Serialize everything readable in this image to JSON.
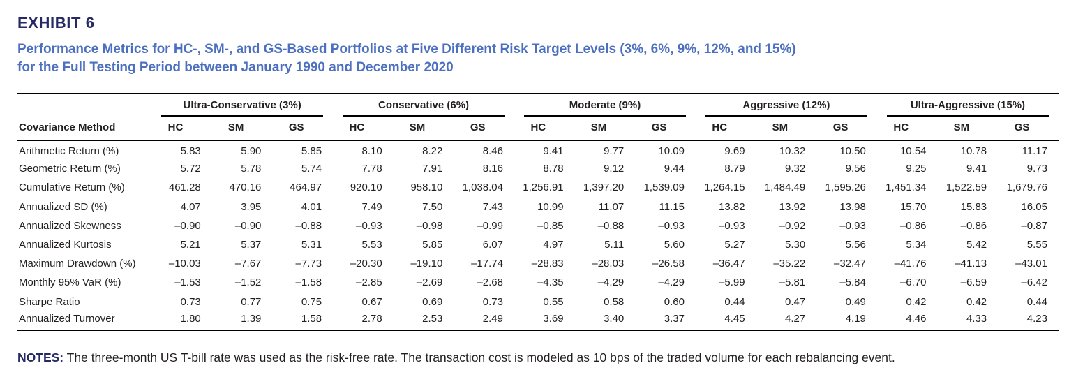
{
  "exhibit": {
    "label": "EXHIBIT 6",
    "title_line1": "Performance Metrics for HC-, SM-, and GS-Based Portfolios at Five Different Risk Target Levels (3%, 6%, 9%, 12%, and 15%)",
    "title_line2": "for the Full Testing Period between January 1990 and December 2020"
  },
  "table": {
    "row_header_label": "Covariance Method",
    "groups": [
      {
        "label": "Ultra-Conservative (3%)",
        "columns": [
          "HC",
          "SM",
          "GS"
        ]
      },
      {
        "label": "Conservative (6%)",
        "columns": [
          "HC",
          "SM",
          "GS"
        ]
      },
      {
        "label": "Moderate (9%)",
        "columns": [
          "HC",
          "SM",
          "GS"
        ]
      },
      {
        "label": "Aggressive (12%)",
        "columns": [
          "HC",
          "SM",
          "GS"
        ]
      },
      {
        "label": "Ultra-Aggressive (15%)",
        "columns": [
          "HC",
          "SM",
          "GS"
        ]
      }
    ],
    "rows": [
      {
        "label": "Arithmetic Return (%)",
        "values": [
          "5.83",
          "5.90",
          "5.85",
          "8.10",
          "8.22",
          "8.46",
          "9.41",
          "9.77",
          "10.09",
          "9.69",
          "10.32",
          "10.50",
          "10.54",
          "10.78",
          "11.17"
        ]
      },
      {
        "label": "Geometric Return (%)",
        "values": [
          "5.72",
          "5.78",
          "5.74",
          "7.78",
          "7.91",
          "8.16",
          "8.78",
          "9.12",
          "9.44",
          "8.79",
          "9.32",
          "9.56",
          "9.25",
          "9.41",
          "9.73"
        ]
      },
      {
        "label": "Cumulative Return (%)",
        "values": [
          "461.28",
          "470.16",
          "464.97",
          "920.10",
          "958.10",
          "1,038.04",
          "1,256.91",
          "1,397.20",
          "1,539.09",
          "1,264.15",
          "1,484.49",
          "1,595.26",
          "1,451.34",
          "1,522.59",
          "1,679.76"
        ]
      },
      {
        "label": "Annualized SD (%)",
        "values": [
          "4.07",
          "3.95",
          "4.01",
          "7.49",
          "7.50",
          "7.43",
          "10.99",
          "11.07",
          "11.15",
          "13.82",
          "13.92",
          "13.98",
          "15.70",
          "15.83",
          "16.05"
        ]
      },
      {
        "label": "Annualized Skewness",
        "values": [
          "–0.90",
          "–0.90",
          "–0.88",
          "–0.93",
          "–0.98",
          "–0.99",
          "–0.85",
          "–0.88",
          "–0.93",
          "–0.93",
          "–0.92",
          "–0.93",
          "–0.86",
          "–0.86",
          "–0.87"
        ]
      },
      {
        "label": "Annualized Kurtosis",
        "values": [
          "5.21",
          "5.37",
          "5.31",
          "5.53",
          "5.85",
          "6.07",
          "4.97",
          "5.11",
          "5.60",
          "5.27",
          "5.30",
          "5.56",
          "5.34",
          "5.42",
          "5.55"
        ]
      },
      {
        "label": "Maximum Drawdown (%)",
        "values": [
          "–10.03",
          "–7.67",
          "–7.73",
          "–20.30",
          "–19.10",
          "–17.74",
          "–28.83",
          "–28.03",
          "–26.58",
          "–36.47",
          "–35.22",
          "–32.47",
          "–41.76",
          "–41.13",
          "–43.01"
        ]
      },
      {
        "label": "Monthly 95% VaR (%)",
        "values": [
          "–1.53",
          "–1.52",
          "–1.58",
          "–2.85",
          "–2.69",
          "–2.68",
          "–4.35",
          "–4.29",
          "–4.29",
          "–5.99",
          "–5.81",
          "–5.84",
          "–6.70",
          "–6.59",
          "–6.42"
        ]
      },
      {
        "label": "Sharpe Ratio",
        "values": [
          "0.73",
          "0.77",
          "0.75",
          "0.67",
          "0.69",
          "0.73",
          "0.55",
          "0.58",
          "0.60",
          "0.44",
          "0.47",
          "0.49",
          "0.42",
          "0.42",
          "0.44"
        ]
      },
      {
        "label": "Annualized Turnover",
        "values": [
          "1.80",
          "1.39",
          "1.58",
          "2.78",
          "2.53",
          "2.49",
          "3.69",
          "3.40",
          "3.37",
          "4.45",
          "4.27",
          "4.19",
          "4.46",
          "4.33",
          "4.23"
        ]
      }
    ]
  },
  "notes": {
    "label": "NOTES:",
    "text": " The three-month US T-bill rate was used as the risk-free rate. The transaction cost is modeled as 10 bps of the traded volume for each rebalancing event."
  },
  "colors": {
    "exhibit_label": "#252a64",
    "title_blue": "#4c70bf",
    "body_text": "#231f20",
    "rule": "#000000"
  }
}
